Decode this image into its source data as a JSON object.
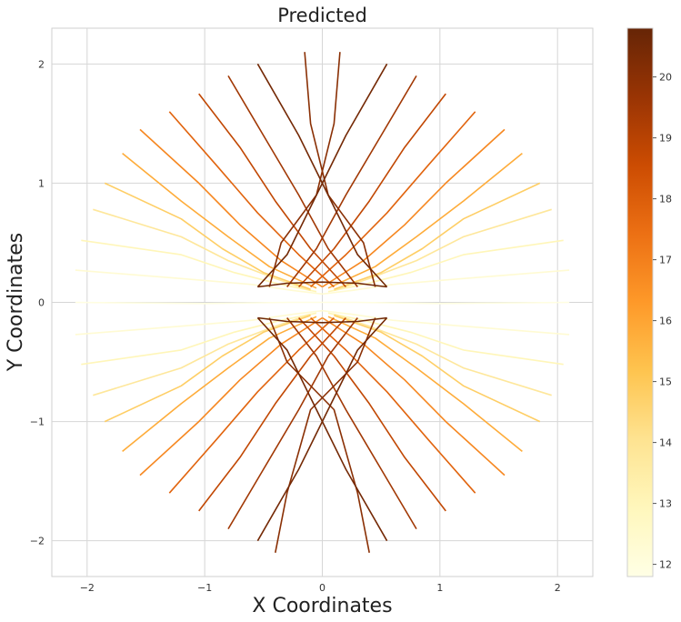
{
  "chart_data": {
    "type": "line",
    "title": "Predicted",
    "xlabel": "X Coordinates",
    "ylabel": "Y Coordinates",
    "xlim": [
      -2.3,
      2.3
    ],
    "ylim": [
      -2.3,
      2.3
    ],
    "xticks": [
      -2,
      -1,
      0,
      1,
      2
    ],
    "yticks": [
      -2,
      -1,
      0,
      1,
      2
    ],
    "xtick_labels": [
      "−2",
      "−1",
      "0",
      "1",
      "2"
    ],
    "ytick_labels": [
      "−2",
      "−1",
      "0",
      "1",
      "2"
    ],
    "grid": true,
    "colorbar": {
      "range": [
        11.8,
        20.8
      ],
      "ticks": [
        12,
        13,
        14,
        15,
        16,
        17,
        18,
        19,
        20
      ],
      "tick_labels": [
        "12",
        "13",
        "14",
        "15",
        "16",
        "17",
        "18",
        "19",
        "20"
      ],
      "colormap": [
        "#ffffe5",
        "#fff7bc",
        "#fee391",
        "#fec44f",
        "#fe9929",
        "#ec7014",
        "#cc4c02",
        "#993404",
        "#662506"
      ]
    },
    "series": [
      {
        "value": 20.5,
        "x": [
          -0.55,
          -0.2,
          0.1,
          0.3,
          0.55
        ],
        "y": [
          2.0,
          1.4,
          0.8,
          0.4,
          0.13
        ]
      },
      {
        "value": 20.5,
        "x": [
          0.55,
          0.2,
          -0.1,
          -0.3,
          -0.55
        ],
        "y": [
          2.0,
          1.4,
          0.8,
          0.4,
          0.13
        ]
      },
      {
        "value": 20.5,
        "x": [
          0.55,
          0.2,
          -0.1,
          -0.3,
          -0.55
        ],
        "y": [
          -2.0,
          -1.4,
          -0.8,
          -0.4,
          -0.13
        ]
      },
      {
        "value": 20.5,
        "x": [
          -0.55,
          -0.2,
          0.1,
          0.3,
          0.55
        ],
        "y": [
          -2.0,
          -1.4,
          -0.8,
          -0.4,
          -0.13
        ]
      },
      {
        "value": 20.0,
        "x": [
          -0.15,
          -0.1,
          0.05,
          0.35,
          0.45
        ],
        "y": [
          2.1,
          1.5,
          0.9,
          0.5,
          0.13
        ]
      },
      {
        "value": 20.0,
        "x": [
          0.15,
          0.1,
          -0.05,
          -0.35,
          -0.45
        ],
        "y": [
          2.1,
          1.5,
          0.9,
          0.5,
          0.13
        ]
      },
      {
        "value": 20.0,
        "x": [
          0.4,
          0.3,
          0.1,
          -0.3,
          -0.45
        ],
        "y": [
          -2.1,
          -1.6,
          -0.9,
          -0.5,
          -0.13
        ]
      },
      {
        "value": 20.0,
        "x": [
          -0.4,
          -0.3,
          -0.1,
          0.3,
          0.45
        ],
        "y": [
          -2.1,
          -1.6,
          -0.9,
          -0.5,
          -0.13
        ]
      },
      {
        "value": 19.5,
        "x": [
          -0.8,
          -0.5,
          -0.2,
          0.05,
          0.3
        ],
        "y": [
          1.9,
          1.4,
          0.9,
          0.45,
          0.13
        ]
      },
      {
        "value": 19.5,
        "x": [
          0.8,
          0.5,
          0.2,
          -0.05,
          -0.3
        ],
        "y": [
          1.9,
          1.4,
          0.9,
          0.45,
          0.13
        ]
      },
      {
        "value": 19.5,
        "x": [
          0.8,
          0.5,
          0.2,
          -0.05,
          -0.3
        ],
        "y": [
          -1.9,
          -1.4,
          -0.9,
          -0.45,
          -0.13
        ]
      },
      {
        "value": 19.5,
        "x": [
          -0.8,
          -0.5,
          -0.2,
          0.05,
          0.3
        ],
        "y": [
          -1.9,
          -1.4,
          -0.9,
          -0.45,
          -0.13
        ]
      },
      {
        "value": 18.8,
        "x": [
          -1.05,
          -0.7,
          -0.4,
          -0.1,
          0.2
        ],
        "y": [
          1.75,
          1.3,
          0.85,
          0.45,
          0.13
        ]
      },
      {
        "value": 18.8,
        "x": [
          1.05,
          0.7,
          0.4,
          0.1,
          -0.2
        ],
        "y": [
          1.75,
          1.3,
          0.85,
          0.45,
          0.13
        ]
      },
      {
        "value": 18.8,
        "x": [
          1.05,
          0.7,
          0.4,
          0.1,
          -0.2
        ],
        "y": [
          -1.75,
          -1.3,
          -0.85,
          -0.45,
          -0.13
        ]
      },
      {
        "value": 18.8,
        "x": [
          -1.05,
          -0.7,
          -0.4,
          -0.1,
          0.2
        ],
        "y": [
          -1.75,
          -1.3,
          -0.85,
          -0.45,
          -0.13
        ]
      },
      {
        "value": 17.8,
        "x": [
          -1.3,
          -0.9,
          -0.55,
          -0.2,
          0.1
        ],
        "y": [
          1.6,
          1.15,
          0.75,
          0.4,
          0.13
        ]
      },
      {
        "value": 17.8,
        "x": [
          1.3,
          0.9,
          0.55,
          0.2,
          -0.1
        ],
        "y": [
          1.6,
          1.15,
          0.75,
          0.4,
          0.13
        ]
      },
      {
        "value": 17.8,
        "x": [
          1.3,
          0.9,
          0.55,
          0.2,
          -0.1
        ],
        "y": [
          -1.6,
          -1.15,
          -0.75,
          -0.4,
          -0.13
        ]
      },
      {
        "value": 17.8,
        "x": [
          -1.3,
          -0.9,
          -0.55,
          -0.2,
          0.1
        ],
        "y": [
          -1.6,
          -1.15,
          -0.75,
          -0.4,
          -0.13
        ]
      },
      {
        "value": 16.8,
        "x": [
          -1.55,
          -1.05,
          -0.7,
          -0.35,
          0.0
        ],
        "y": [
          1.45,
          1.0,
          0.65,
          0.35,
          0.13
        ]
      },
      {
        "value": 16.8,
        "x": [
          1.55,
          1.05,
          0.7,
          0.35,
          0.0
        ],
        "y": [
          1.45,
          1.0,
          0.65,
          0.35,
          0.13
        ]
      },
      {
        "value": 16.8,
        "x": [
          1.55,
          1.05,
          0.7,
          0.35,
          0.0
        ],
        "y": [
          -1.45,
          -1.0,
          -0.65,
          -0.35,
          -0.13
        ]
      },
      {
        "value": 16.8,
        "x": [
          -1.55,
          -1.05,
          -0.7,
          -0.35,
          0.0
        ],
        "y": [
          -1.45,
          -1.0,
          -0.65,
          -0.35,
          -0.13
        ]
      },
      {
        "value": 15.8,
        "x": [
          -1.7,
          -1.2,
          -0.8,
          -0.45,
          -0.05
        ],
        "y": [
          1.25,
          0.85,
          0.55,
          0.3,
          0.12
        ]
      },
      {
        "value": 15.8,
        "x": [
          1.7,
          1.2,
          0.8,
          0.45,
          0.05
        ],
        "y": [
          1.25,
          0.85,
          0.55,
          0.3,
          0.12
        ]
      },
      {
        "value": 15.8,
        "x": [
          1.7,
          1.2,
          0.8,
          0.45,
          0.05
        ],
        "y": [
          -1.25,
          -0.85,
          -0.55,
          -0.3,
          -0.12
        ]
      },
      {
        "value": 15.8,
        "x": [
          -1.7,
          -1.2,
          -0.8,
          -0.45,
          -0.05
        ],
        "y": [
          -1.25,
          -0.85,
          -0.55,
          -0.3,
          -0.12
        ]
      },
      {
        "value": 14.8,
        "x": [
          -1.85,
          -1.2,
          -0.85,
          -0.5,
          -0.1
        ],
        "y": [
          1.0,
          0.7,
          0.45,
          0.25,
          0.11
        ]
      },
      {
        "value": 14.8,
        "x": [
          1.85,
          1.2,
          0.85,
          0.5,
          0.1
        ],
        "y": [
          1.0,
          0.7,
          0.45,
          0.25,
          0.11
        ]
      },
      {
        "value": 14.8,
        "x": [
          1.85,
          1.2,
          0.85,
          0.5,
          0.1
        ],
        "y": [
          -1.0,
          -0.7,
          -0.45,
          -0.25,
          -0.11
        ]
      },
      {
        "value": 14.8,
        "x": [
          -1.85,
          -1.2,
          -0.85,
          -0.5,
          -0.1
        ],
        "y": [
          -1.0,
          -0.7,
          -0.45,
          -0.25,
          -0.11
        ]
      },
      {
        "value": 13.8,
        "x": [
          -1.95,
          -1.2,
          -0.8,
          -0.4,
          -0.1
        ],
        "y": [
          0.78,
          0.55,
          0.35,
          0.2,
          0.1
        ]
      },
      {
        "value": 13.8,
        "x": [
          1.95,
          1.2,
          0.8,
          0.4,
          0.1
        ],
        "y": [
          0.78,
          0.55,
          0.35,
          0.2,
          0.1
        ]
      },
      {
        "value": 13.8,
        "x": [
          1.95,
          1.2,
          0.8,
          0.4,
          0.1
        ],
        "y": [
          -0.78,
          -0.55,
          -0.35,
          -0.2,
          -0.1
        ]
      },
      {
        "value": 13.8,
        "x": [
          -1.95,
          -1.2,
          -0.8,
          -0.4,
          -0.1
        ],
        "y": [
          -0.78,
          -0.55,
          -0.35,
          -0.2,
          -0.1
        ]
      },
      {
        "value": 13.0,
        "x": [
          -2.05,
          -1.2,
          -0.75,
          -0.35,
          -0.05
        ],
        "y": [
          0.52,
          0.4,
          0.25,
          0.15,
          0.09
        ]
      },
      {
        "value": 13.0,
        "x": [
          2.05,
          1.2,
          0.75,
          0.35,
          0.05
        ],
        "y": [
          0.52,
          0.4,
          0.25,
          0.15,
          0.09
        ]
      },
      {
        "value": 13.0,
        "x": [
          2.05,
          1.2,
          0.75,
          0.35,
          0.05
        ],
        "y": [
          -0.52,
          -0.4,
          -0.25,
          -0.15,
          -0.09
        ]
      },
      {
        "value": 13.0,
        "x": [
          -2.05,
          -1.2,
          -0.75,
          -0.35,
          -0.05
        ],
        "y": [
          -0.52,
          -0.4,
          -0.25,
          -0.15,
          -0.09
        ]
      },
      {
        "value": 12.3,
        "x": [
          -2.1,
          -1.2,
          -0.6,
          -0.25,
          0.0
        ],
        "y": [
          0.27,
          0.2,
          0.15,
          0.1,
          0.07
        ]
      },
      {
        "value": 12.3,
        "x": [
          2.1,
          1.2,
          0.6,
          0.25,
          0.0
        ],
        "y": [
          0.27,
          0.2,
          0.15,
          0.1,
          0.07
        ]
      },
      {
        "value": 12.3,
        "x": [
          2.1,
          1.2,
          0.6,
          0.25,
          0.0
        ],
        "y": [
          -0.27,
          -0.2,
          -0.15,
          -0.1,
          -0.07
        ]
      },
      {
        "value": 12.3,
        "x": [
          -2.1,
          -1.2,
          -0.6,
          -0.25,
          0.0
        ],
        "y": [
          -0.27,
          -0.2,
          -0.15,
          -0.1,
          -0.07
        ]
      },
      {
        "value": 11.9,
        "x": [
          -2.1,
          -1.0,
          -0.3,
          0.3,
          1.0,
          2.1
        ],
        "y": [
          0.0,
          -0.01,
          0.0,
          0.0,
          -0.01,
          0.0
        ]
      },
      {
        "value": 20.6,
        "x": [
          -0.55,
          -0.3,
          0.0,
          0.3,
          0.55
        ],
        "y": [
          0.13,
          0.16,
          0.17,
          0.16,
          0.13
        ]
      },
      {
        "value": 20.6,
        "x": [
          -0.55,
          -0.3,
          0.0,
          0.3,
          0.55
        ],
        "y": [
          -0.13,
          -0.16,
          -0.17,
          -0.16,
          -0.13
        ]
      }
    ]
  }
}
